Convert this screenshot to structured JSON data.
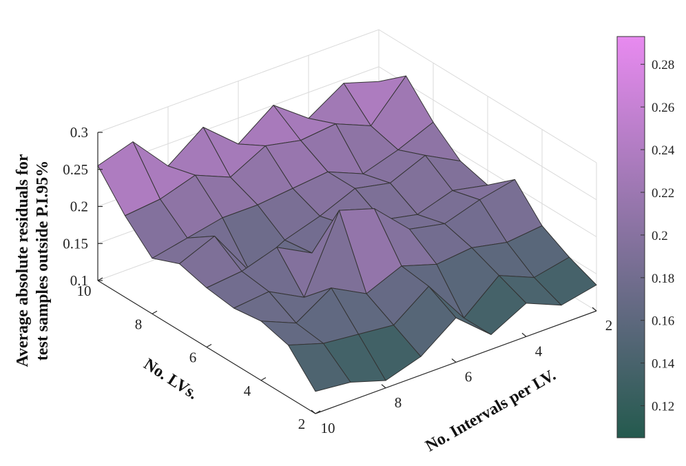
{
  "chart_data": {
    "type": "surface",
    "title": "",
    "xlabel": "No. Intervals per LV.",
    "ylabel": "No. LVs.",
    "zlabel_lines": [
      "Average absolute residuals for",
      "test samples outside P.I.95%"
    ],
    "x": [
      2,
      3,
      4,
      5,
      6,
      7,
      8,
      9,
      10
    ],
    "y": [
      2,
      3,
      4,
      5,
      6,
      7,
      8,
      9,
      10
    ],
    "z": [
      [
        0.135,
        0.125,
        0.145,
        0.12,
        0.16,
        0.125,
        0.11,
        0.125,
        0.13
      ],
      [
        0.15,
        0.14,
        0.16,
        0.12,
        0.18,
        0.145,
        0.15,
        0.155,
        0.17
      ],
      [
        0.17,
        0.165,
        0.175,
        0.17,
        0.185,
        0.165,
        0.19,
        0.16,
        0.18
      ],
      [
        0.21,
        0.2,
        0.185,
        0.195,
        0.24,
        0.255,
        0.155,
        0.18,
        0.175
      ],
      [
        0.18,
        0.19,
        0.175,
        0.185,
        0.195,
        0.175,
        0.2,
        0.185,
        0.18
      ],
      [
        0.19,
        0.215,
        0.195,
        0.205,
        0.185,
        0.17,
        0.145,
        0.21,
        0.19
      ],
      [
        0.22,
        0.2,
        0.185,
        0.205,
        0.2,
        0.195,
        0.195,
        0.185,
        0.175
      ],
      [
        0.26,
        0.21,
        0.23,
        0.225,
        0.235,
        0.21,
        0.23,
        0.215,
        0.21
      ],
      [
        0.23,
        0.245,
        0.215,
        0.25,
        0.215,
        0.255,
        0.22,
        0.27,
        0.255
      ]
    ],
    "xticks": [
      2,
      4,
      6,
      8,
      10
    ],
    "yticks": [
      2,
      4,
      6,
      8,
      10
    ],
    "zticks": [
      0.1,
      0.15,
      0.2,
      0.25,
      0.3
    ],
    "xlim": [
      2,
      10
    ],
    "ylim": [
      2,
      10
    ],
    "zlim": [
      0.1,
      0.3
    ],
    "grid": true,
    "colorbar": {
      "ticks": [
        0.12,
        0.14,
        0.16,
        0.18,
        0.2,
        0.22,
        0.24,
        0.26,
        0.28
      ],
      "range": [
        0.105,
        0.293
      ],
      "colors": [
        "#245a4e",
        "#e88af0"
      ]
    },
    "edge_color": "#333333"
  }
}
